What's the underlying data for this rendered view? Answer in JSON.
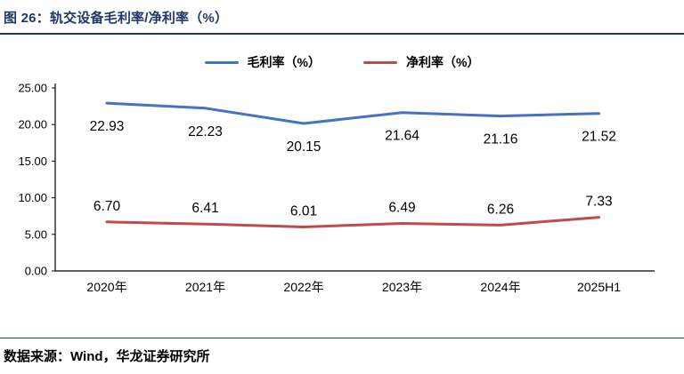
{
  "header": {
    "title": "图 26：轨交设备毛利率/净利率（%）"
  },
  "footer": {
    "source": "数据来源：Wind，华龙证券研究所"
  },
  "colors": {
    "accent_navy": "#1F3864",
    "gross_margin_line": "#4472C4",
    "net_margin_line": "#BE4B48",
    "axis": "#000000"
  },
  "chart_data": {
    "type": "line",
    "title": "轨交设备毛利率/净利率（%）",
    "categories": [
      "2020年",
      "2021年",
      "2022年",
      "2023年",
      "2024年",
      "2025H1"
    ],
    "series": [
      {
        "name": "毛利率（%）",
        "color": "#4472C4",
        "values": [
          22.93,
          22.23,
          20.15,
          21.64,
          21.16,
          21.52
        ],
        "label_position": "below"
      },
      {
        "name": "净利率（%）",
        "color": "#BE4B48",
        "values": [
          6.7,
          6.41,
          6.01,
          6.49,
          6.26,
          7.33
        ],
        "label_position": "above"
      }
    ],
    "y_axis": {
      "min": 0,
      "max": 25,
      "step": 5,
      "tick_labels": [
        "0.00",
        "5.00",
        "10.00",
        "15.00",
        "20.00",
        "25.00"
      ]
    },
    "xlabel": "",
    "ylabel": "",
    "legend_position": "top",
    "grid": false
  }
}
